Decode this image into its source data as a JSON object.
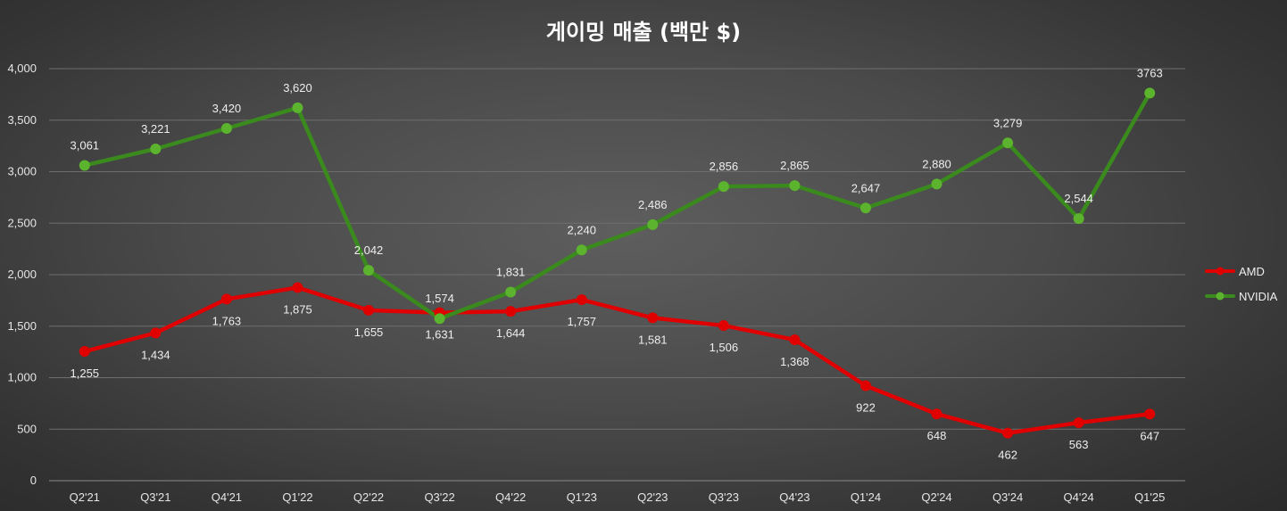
{
  "chart_data": {
    "type": "line",
    "title": "게이밍 매출 (백만 $)",
    "xlabel": "",
    "ylabel": "",
    "ylim": [
      0,
      4000
    ],
    "yticks": [
      0,
      500,
      1000,
      1500,
      2000,
      2500,
      3000,
      3500,
      4000
    ],
    "ytick_labels": [
      "0",
      "500",
      "1,000",
      "1,500",
      "2,000",
      "2,500",
      "3,000",
      "3,500",
      "4,000"
    ],
    "grid": true,
    "legend_position": "right",
    "categories": [
      "Q2'21",
      "Q3'21",
      "Q4'21",
      "Q1'22",
      "Q2'22",
      "Q3'22",
      "Q4'22",
      "Q1'23",
      "Q2'23",
      "Q3'23",
      "Q4'23",
      "Q1'24",
      "Q2'24",
      "Q3'24",
      "Q4'24",
      "Q1'25"
    ],
    "series": [
      {
        "name": "AMD",
        "color": "#e00000",
        "label_position": "below",
        "values": [
          1255,
          1434,
          1763,
          1875,
          1655,
          1631,
          1644,
          1757,
          1581,
          1506,
          1368,
          922,
          648,
          462,
          563,
          647
        ],
        "labels": [
          "1,255",
          "1,434",
          "1,763",
          "1,875",
          "1,655",
          "1,631",
          "1,644",
          "1,757",
          "1,581",
          "1,506",
          "1,368",
          "922",
          "648",
          "462",
          "563",
          "647"
        ]
      },
      {
        "name": "NVIDIA",
        "color": "#3a8a1e",
        "marker_color": "#5cb32e",
        "label_position": "above",
        "values": [
          3061,
          3221,
          3420,
          3620,
          2042,
          1574,
          1831,
          2240,
          2486,
          2856,
          2865,
          2647,
          2880,
          3279,
          2544,
          3763
        ],
        "labels": [
          "3,061",
          "3,221",
          "3,420",
          "3,620",
          "2,042",
          "1,574",
          "1,831",
          "2,240",
          "2,486",
          "2,856",
          "2,865",
          "2,647",
          "2,880",
          "3,279",
          "2,544",
          "3763"
        ]
      }
    ]
  }
}
